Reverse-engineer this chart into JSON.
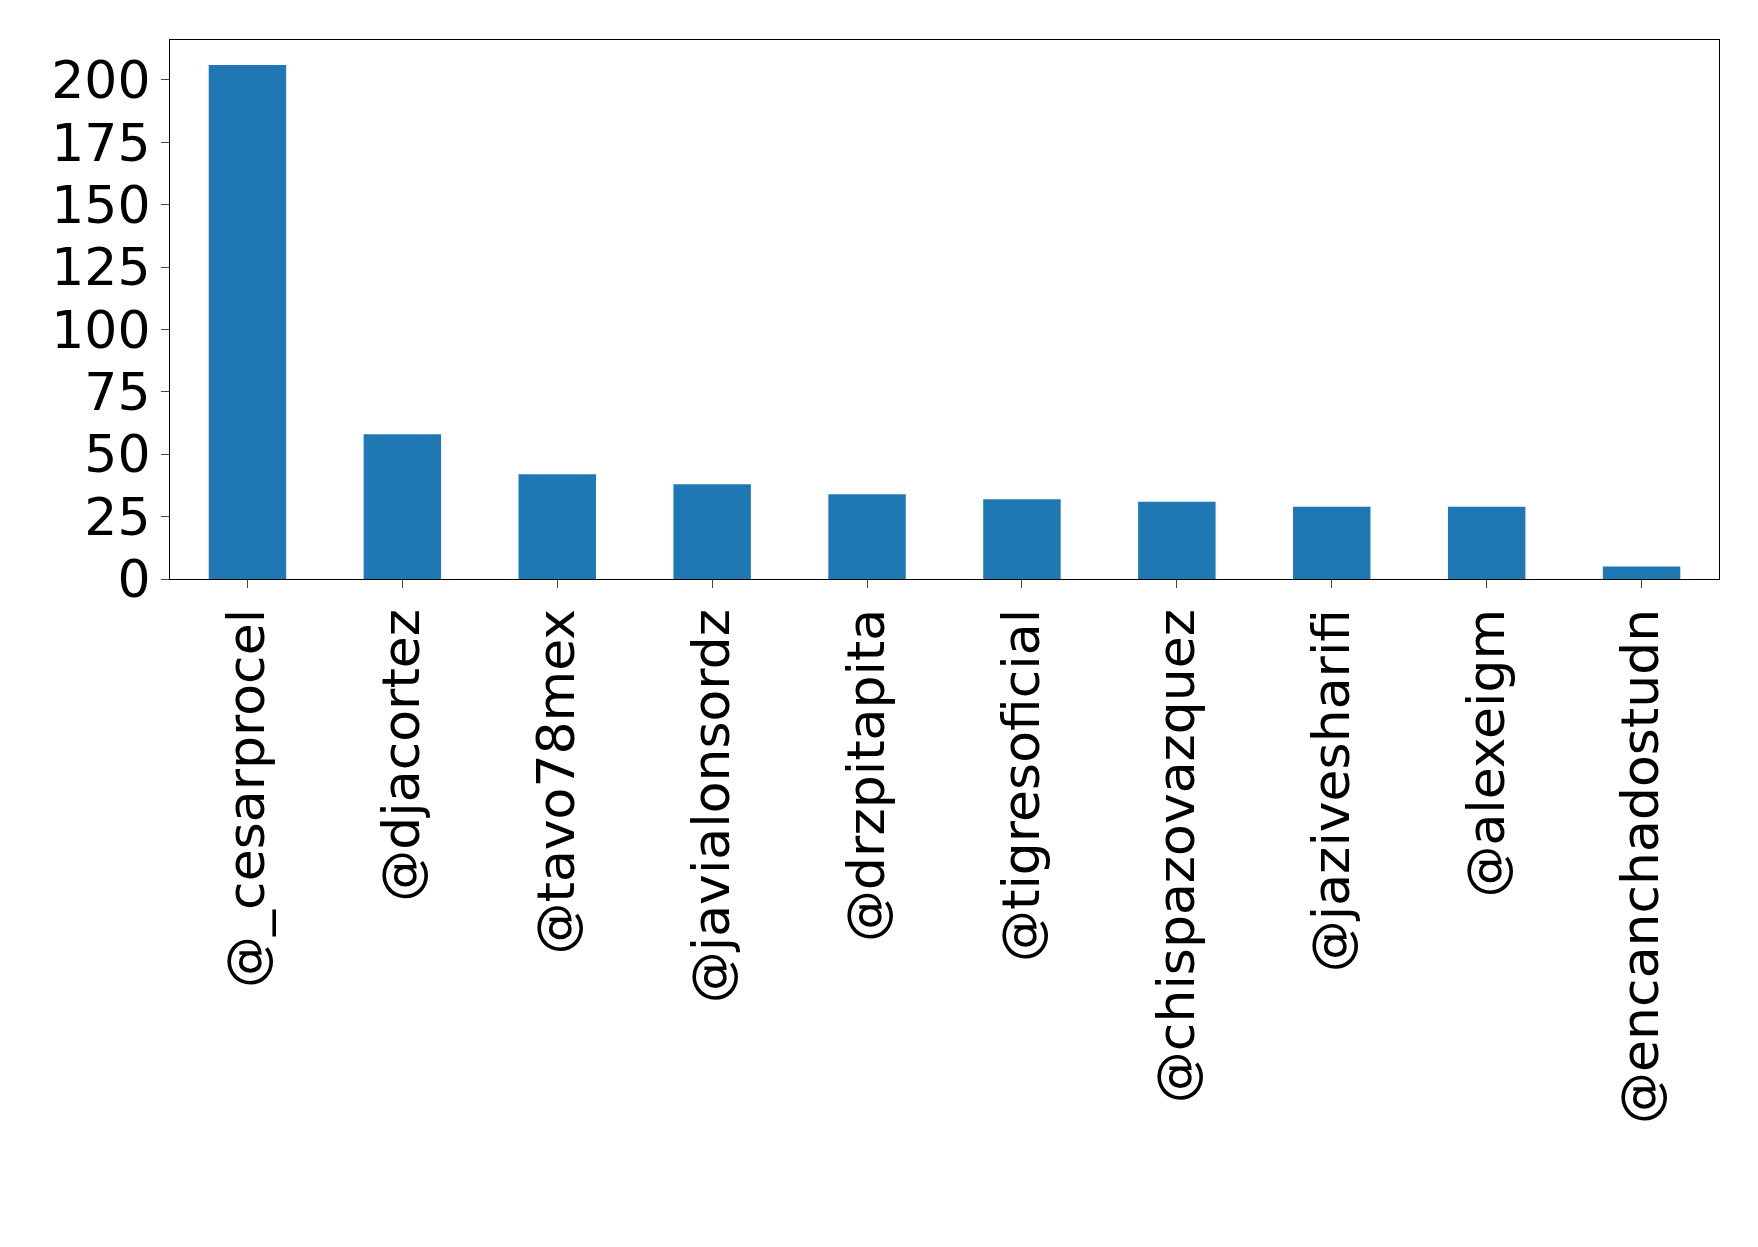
{
  "chart_data": {
    "type": "bar",
    "categories": [
      "@_cesarprocel",
      "@djacortez",
      "@tavo78mex",
      "@javialonsordz",
      "@drzpitapita",
      "@tigresoficial",
      "@chispazovazquez",
      "@jazivesharifi",
      "@alexeigm",
      "@encanchadostudn"
    ],
    "values": [
      206,
      58,
      42,
      38,
      34,
      32,
      31,
      29,
      29,
      5
    ],
    "color": "#1f77b4",
    "ylim": [
      0,
      216
    ],
    "yticks": [
      0,
      25,
      50,
      75,
      100,
      125,
      150,
      175,
      200
    ],
    "grid": false,
    "legend": false
  }
}
